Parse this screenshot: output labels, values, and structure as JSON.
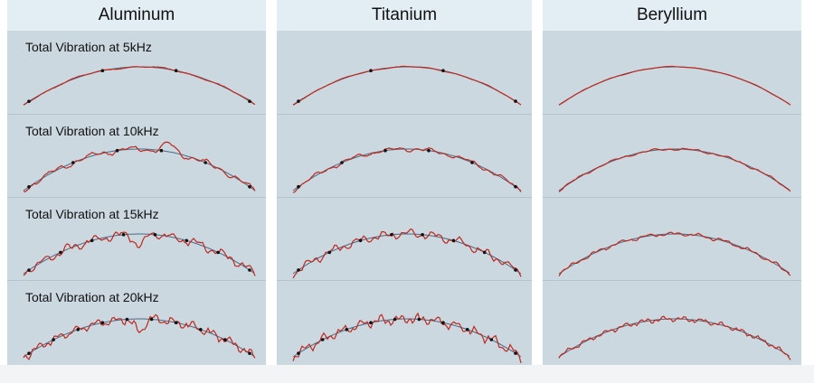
{
  "columns": [
    {
      "title": "Aluminum"
    },
    {
      "title": "Titanium"
    },
    {
      "title": "Beryllium"
    }
  ],
  "rows": [
    {
      "label": "Total Vibration at 5kHz"
    },
    {
      "label": "Total Vibration at 10kHz"
    },
    {
      "label": "Total Vibration at 15kHz"
    },
    {
      "label": "Total Vibration at 20kHz"
    }
  ],
  "colors": {
    "reference_curve": "#4a6a86",
    "vibration_curve": "#c0281e",
    "marker": "#111111",
    "panel_bg": "#cbd8e0",
    "header_bg": "#e2edf4"
  }
}
